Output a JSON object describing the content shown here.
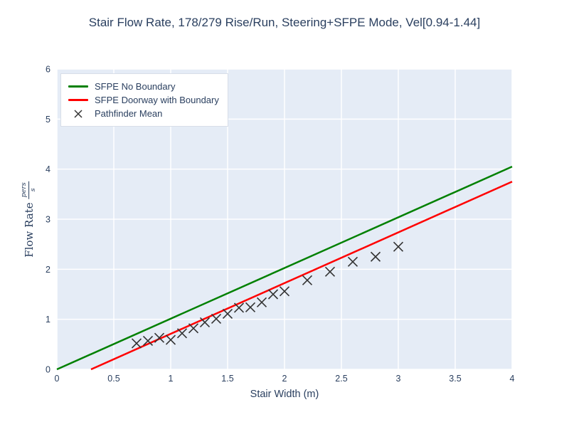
{
  "title": "Stair Flow Rate, 178/279 Rise/Run, Steering+SFPE Mode, Vel[0.94-1.44]",
  "xaxis": {
    "title": "Stair Width (m)",
    "tick_labels": [
      "0",
      "0.5",
      "1",
      "1.5",
      "2",
      "2.5",
      "3",
      "3.5",
      "4"
    ]
  },
  "yaxis": {
    "title_text": "Flow Rate",
    "title_frac_num": "pers",
    "title_frac_den": "s",
    "tick_labels": [
      "0",
      "1",
      "2",
      "3",
      "4",
      "5",
      "6"
    ]
  },
  "legend": {
    "items": [
      {
        "label": "SFPE No Boundary",
        "swatch": "line",
        "color": "#008000"
      },
      {
        "label": "SFPE Doorway with Boundary",
        "swatch": "line",
        "color": "#ff0000"
      },
      {
        "label": "Pathfinder Mean",
        "swatch": "x-marker",
        "color": "#333333"
      }
    ]
  },
  "colors": {
    "text": "#2a3f5f",
    "plot_background": "#E5ECF6",
    "grid": "#ffffff",
    "sfpe_no_boundary": "#008000",
    "sfpe_doorway_with_boundary": "#ff0000",
    "pathfinder_mean": "#333333"
  },
  "chart_data": {
    "type": "line",
    "title": "Stair Flow Rate, 178/279 Rise/Run, Steering+SFPE Mode, Vel[0.94-1.44]",
    "xlabel": "Stair Width (m)",
    "ylabel": "Flow Rate pers/s",
    "xlim": [
      0,
      4
    ],
    "ylim": [
      0,
      6
    ],
    "xticks": [
      0,
      0.5,
      1,
      1.5,
      2,
      2.5,
      3,
      3.5,
      4
    ],
    "yticks": [
      0,
      1,
      2,
      3,
      4,
      5,
      6
    ],
    "grid": true,
    "legend_position": "top-left",
    "plot_bg": "#E5ECF6",
    "grid_color": "#ffffff",
    "series": [
      {
        "name": "SFPE No Boundary",
        "type": "line",
        "color": "#008000",
        "x": [
          0,
          4
        ],
        "y": [
          0,
          4.05
        ]
      },
      {
        "name": "SFPE Doorway with Boundary",
        "type": "line",
        "color": "#ff0000",
        "x": [
          0.3,
          4
        ],
        "y": [
          0,
          3.75
        ]
      },
      {
        "name": "Pathfinder Mean",
        "type": "scatter",
        "marker": "x",
        "color": "#333333",
        "x": [
          0.7,
          0.8,
          0.9,
          1.0,
          1.1,
          1.2,
          1.3,
          1.4,
          1.5,
          1.6,
          1.7,
          1.8,
          1.9,
          2.0,
          2.2,
          2.4,
          2.6,
          2.8,
          3.0
        ],
        "y": [
          0.52,
          0.57,
          0.63,
          0.59,
          0.72,
          0.82,
          0.94,
          1.01,
          1.11,
          1.23,
          1.24,
          1.34,
          1.5,
          1.56,
          1.78,
          1.95,
          2.15,
          2.25,
          2.45
        ]
      }
    ]
  }
}
